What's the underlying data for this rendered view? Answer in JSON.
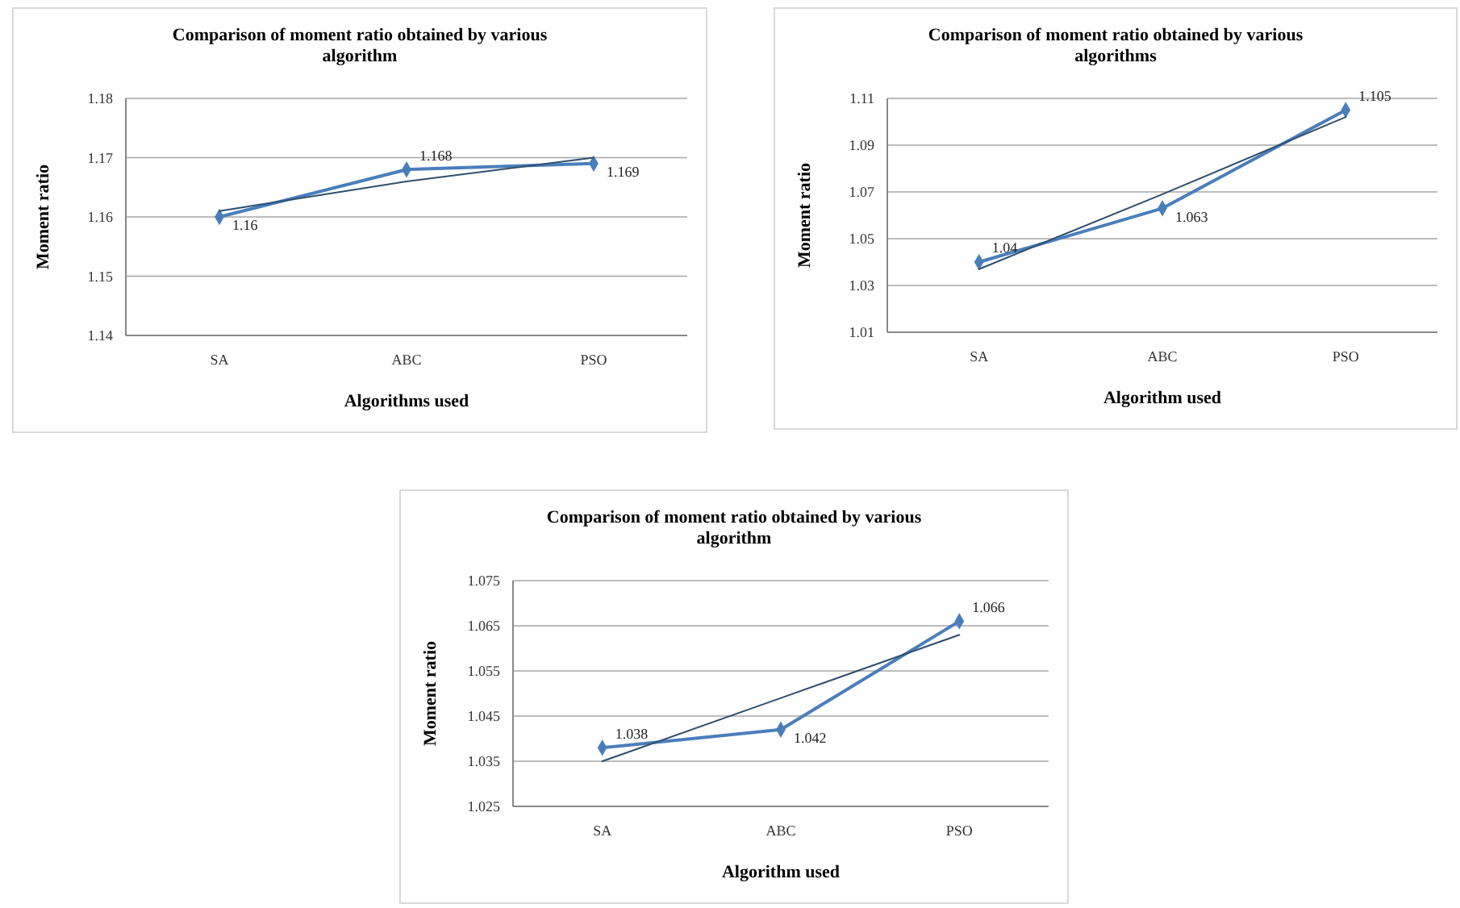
{
  "chart_data": [
    {
      "type": "line",
      "title": "Comparison of moment ratio obtained by various algorithm",
      "xlabel": "Algorithms used",
      "ylabel": "Moment ratio",
      "categories": [
        "SA",
        "ABC",
        "PSO"
      ],
      "series": [
        {
          "color": "#4a7ebb",
          "values": [
            1.16,
            1.168,
            1.169
          ],
          "value_labels": [
            "1.16",
            "1.168",
            "1.169"
          ]
        },
        {
          "color": "#2f4f6f",
          "values": [
            1.161,
            1.166,
            1.17
          ],
          "marker": "none"
        }
      ],
      "ylim": [
        1.14,
        1.18
      ],
      "yticks": [
        1.14,
        1.15,
        1.16,
        1.17,
        1.18
      ],
      "grid": "y",
      "marker": "diamond"
    },
    {
      "type": "line",
      "title": "Comparison of moment ratio obtained by various algorithms",
      "xlabel": "Algorithm used",
      "ylabel": "Moment ratio",
      "categories": [
        "SA",
        "ABC",
        "PSO"
      ],
      "series": [
        {
          "color": "#4a7ebb",
          "values": [
            1.04,
            1.063,
            1.105
          ],
          "value_labels": [
            "1.04",
            "1.063",
            "1.105"
          ]
        },
        {
          "color": "#2f4f6f",
          "values": [
            1.037,
            1.069,
            1.102
          ],
          "marker": "none"
        }
      ],
      "ylim": [
        1.01,
        1.11
      ],
      "yticks": [
        1.01,
        1.03,
        1.05,
        1.07,
        1.09,
        1.11
      ],
      "grid": "y",
      "marker": "diamond"
    },
    {
      "type": "line",
      "title": "Comparison of moment ratio obtained by various algorithm",
      "xlabel": "Algorithm used",
      "ylabel": "Moment ratio",
      "categories": [
        "SA",
        "ABC",
        "PSO"
      ],
      "series": [
        {
          "color": "#4a7ebb",
          "values": [
            1.038,
            1.042,
            1.066
          ],
          "value_labels": [
            "1.038",
            "1.042",
            "1.066"
          ]
        },
        {
          "color": "#2f4f6f",
          "values": [
            1.035,
            1.049,
            1.063
          ],
          "marker": "none"
        }
      ],
      "ylim": [
        1.025,
        1.075
      ],
      "yticks": [
        1.025,
        1.035,
        1.045,
        1.055,
        1.065,
        1.075
      ],
      "grid": "y",
      "marker": "diamond"
    }
  ]
}
